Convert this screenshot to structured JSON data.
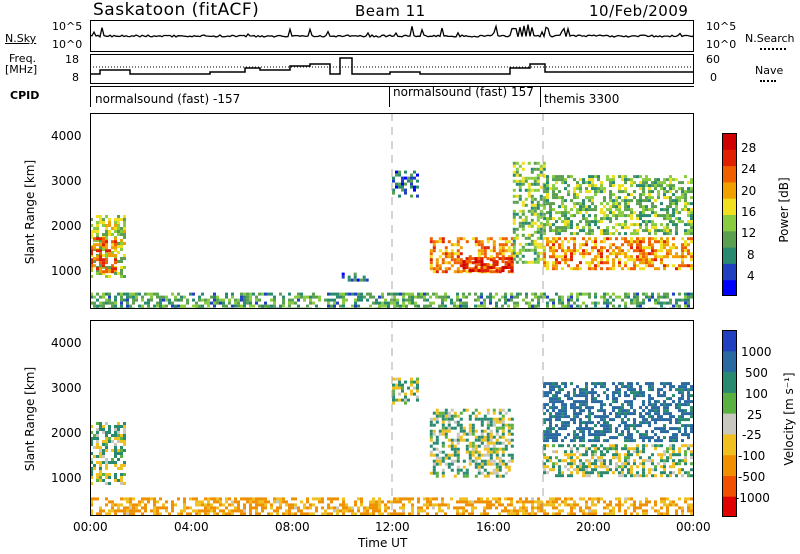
{
  "header": {
    "station": "Saskatoon (fitACF)",
    "beam": "Beam 11",
    "date": "10/Feb/2009"
  },
  "summary_panels": {
    "nsky_label": "N.Sky",
    "nsky_ticks": [
      "10^5",
      "10^0"
    ],
    "nsearch_label": "N.Search",
    "nsearch_ticks": [
      "10^5",
      "10^0"
    ],
    "freq_label": "Freq.",
    "freq_unit": "[MHz]",
    "freq_ticks": [
      "18",
      "8"
    ],
    "nave_label": "Nave",
    "nave_ticks": [
      "60",
      "0"
    ],
    "cpid_label": "CPID",
    "cpid_segments": [
      "normalsound (fast) -157",
      "normalsound (fast) 157",
      "themis 3300"
    ]
  },
  "axis": {
    "ylabel": "Slant Range [km]",
    "xlabel": "Time UT",
    "yticks": [
      "4000",
      "3000",
      "2000",
      "1000"
    ],
    "xticks": [
      "00:00",
      "04:00",
      "08:00",
      "12:00",
      "16:00",
      "20:00",
      "00:00"
    ]
  },
  "colorbars": {
    "power_label": "Power [dB]",
    "power_ticks": [
      "28",
      "24",
      "20",
      "16",
      "12",
      "8",
      "4"
    ],
    "power_colors": [
      "#0000ff",
      "#2040c0",
      "#2a8a70",
      "#5aa050",
      "#8acc40",
      "#f0e020",
      "#f0a000",
      "#f06000",
      "#e02000",
      "#d00000"
    ],
    "velocity_label": "Velocity [m s⁻¹]",
    "velocity_ticks": [
      "1000",
      "500",
      "100",
      "25",
      "-25",
      "-100",
      "-500",
      "-1000"
    ],
    "velocity_colors": [
      "#2040c0",
      "#2a6aa0",
      "#2a8a70",
      "#5ab040",
      "#c8c8c0",
      "#f0c020",
      "#f09000",
      "#f05000",
      "#e00000"
    ]
  },
  "chart_data": [
    {
      "type": "heatmap",
      "title": "Power",
      "ylabel": "Slant Range [km]",
      "xlabel": "",
      "ylim": [
        180,
        4600
      ],
      "xlim": [
        0,
        24
      ],
      "value_label": "Power [dB]",
      "cmap_range": [
        0,
        30
      ],
      "regions": [
        {
          "t": [
            0.0,
            1.4
          ],
          "r": [
            900,
            2300
          ],
          "value": 14
        },
        {
          "t": [
            0.0,
            1.0
          ],
          "r": [
            1000,
            1800
          ],
          "value": 22
        },
        {
          "t": [
            13.5,
            16.8
          ],
          "r": [
            1000,
            1800
          ],
          "value": 20
        },
        {
          "t": [
            14.8,
            16.8
          ],
          "r": [
            1050,
            1350
          ],
          "value": 26
        },
        {
          "t": [
            16.8,
            18.0
          ],
          "r": [
            1200,
            3500
          ],
          "value": 12
        },
        {
          "t": [
            18.0,
            24.0
          ],
          "r": [
            1100,
            1800
          ],
          "value": 20
        },
        {
          "t": [
            18.0,
            24.0
          ],
          "r": [
            1900,
            3200
          ],
          "value": 12
        },
        {
          "t": [
            0.0,
            24.0
          ],
          "r": [
            200,
            550
          ],
          "value": 10
        },
        {
          "t": [
            12.0,
            13.0
          ],
          "r": [
            2700,
            3300
          ],
          "value": 6
        },
        {
          "t": [
            10.0,
            11.0
          ],
          "r": [
            800,
            1000
          ],
          "value": 6
        }
      ]
    },
    {
      "type": "heatmap",
      "title": "Velocity",
      "ylabel": "Slant Range [km]",
      "xlabel": "Time UT",
      "ylim": [
        180,
        4600
      ],
      "xlim": [
        0,
        24
      ],
      "value_label": "Velocity [m s-1]",
      "cmap_range": [
        -1000,
        1000
      ],
      "regions": [
        {
          "t": [
            0.0,
            1.4
          ],
          "r": [
            900,
            2300
          ],
          "value": 0
        },
        {
          "t": [
            13.5,
            16.8
          ],
          "r": [
            1100,
            2600
          ],
          "value": 0
        },
        {
          "t": [
            18.0,
            24.0
          ],
          "r": [
            1100,
            1800
          ],
          "value": 0
        },
        {
          "t": [
            18.0,
            24.0
          ],
          "r": [
            1900,
            3200
          ],
          "value": 150
        },
        {
          "t": [
            0.0,
            24.0
          ],
          "r": [
            200,
            600
          ],
          "value": -120
        },
        {
          "t": [
            12.0,
            13.0
          ],
          "r": [
            2700,
            3300
          ],
          "value": 0
        }
      ]
    }
  ]
}
